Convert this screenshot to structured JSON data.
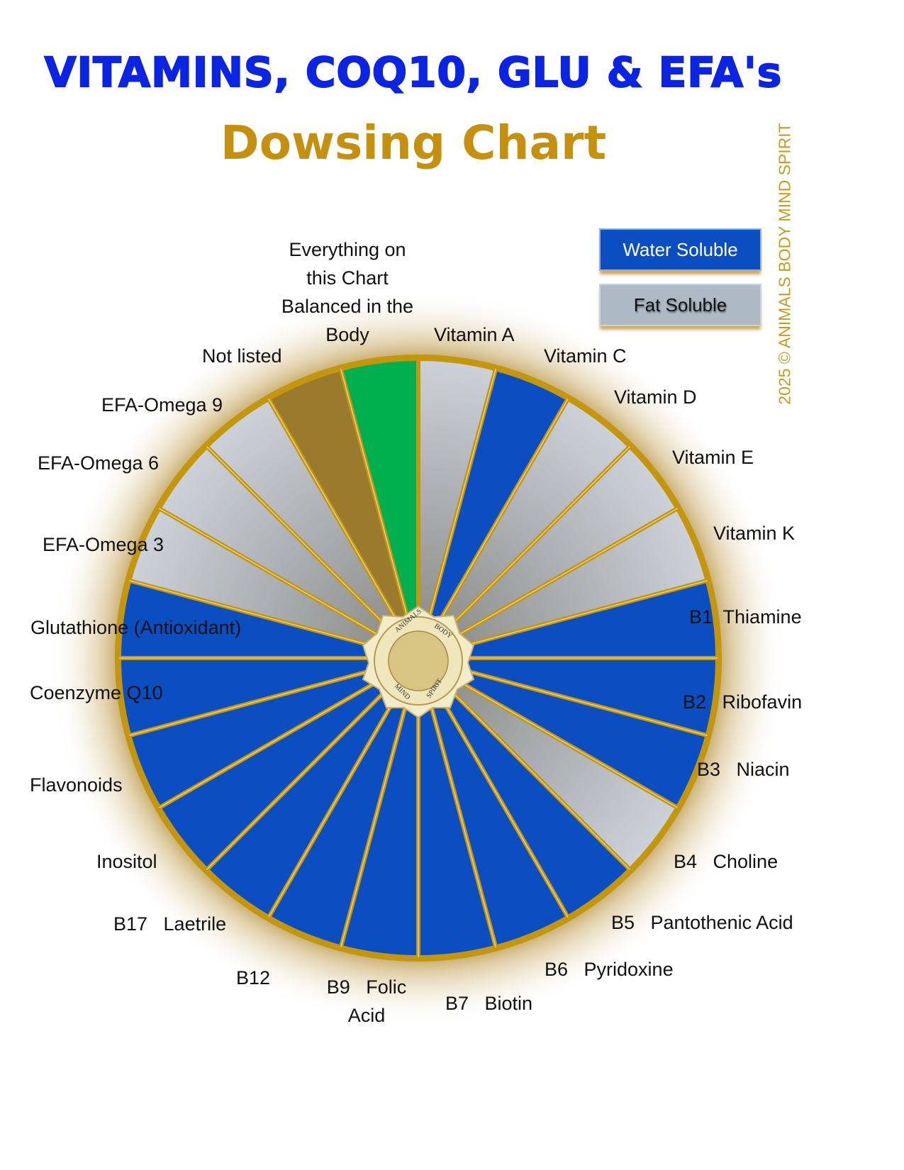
{
  "title": "VITAMINS, COQ10, GLU & EFA's",
  "subtitle": "Dowsing Chart",
  "copyright": "2025 © ANIMALS BODY MIND SPIRIT",
  "legend": {
    "water_soluble": "Water Soluble",
    "fat_soluble": "Fat Soluble"
  },
  "colors": {
    "water_soluble": "#0a4ec2",
    "fat_soluble": "#b4bcc4",
    "not_listed": "#9a7a2c",
    "balanced": "#00b04f",
    "border": "#c4960e",
    "title": "#0b24e3",
    "subtitle": "#c4900e"
  },
  "center_logo": {
    "text": [
      "ANIMALS",
      "BODY",
      "MIND",
      "SPIRIT"
    ]
  },
  "segments": [
    {
      "label": "Vitamin A",
      "type": "fat"
    },
    {
      "label": "Vitamin C",
      "type": "water"
    },
    {
      "label": "Vitamin D",
      "type": "fat"
    },
    {
      "label": "Vitamin E",
      "type": "fat"
    },
    {
      "label": "Vitamin K",
      "type": "fat"
    },
    {
      "label": "B1  Thiamine",
      "type": "water"
    },
    {
      "label": "B2   Ribofavin",
      "type": "water"
    },
    {
      "label": "B3   Niacin",
      "type": "water"
    },
    {
      "label": "B4   Choline",
      "type": "fat"
    },
    {
      "label": "B5   Pantothenic Acid",
      "type": "water"
    },
    {
      "label": "B6   Pyridoxine",
      "type": "water"
    },
    {
      "label": "B7   Biotin",
      "type": "water"
    },
    {
      "label": "B9   Folic\nAcid",
      "type": "water"
    },
    {
      "label": "B12",
      "type": "water"
    },
    {
      "label": "B17   Laetrile",
      "type": "water"
    },
    {
      "label": "Inositol",
      "type": "water"
    },
    {
      "label": "Flavonoids",
      "type": "water"
    },
    {
      "label": "Coenzyme Q10",
      "type": "water"
    },
    {
      "label": "Glutathione (Antioxidant)",
      "type": "water"
    },
    {
      "label": "EFA-Omega 3",
      "type": "fat"
    },
    {
      "label": "EFA-Omega 6",
      "type": "fat"
    },
    {
      "label": "EFA-Omega 9",
      "type": "fat"
    },
    {
      "label": "Not listed",
      "type": "not_listed"
    },
    {
      "label": "Everything on\nthis Chart\nBalanced in the\nBody",
      "type": "balanced"
    }
  ]
}
